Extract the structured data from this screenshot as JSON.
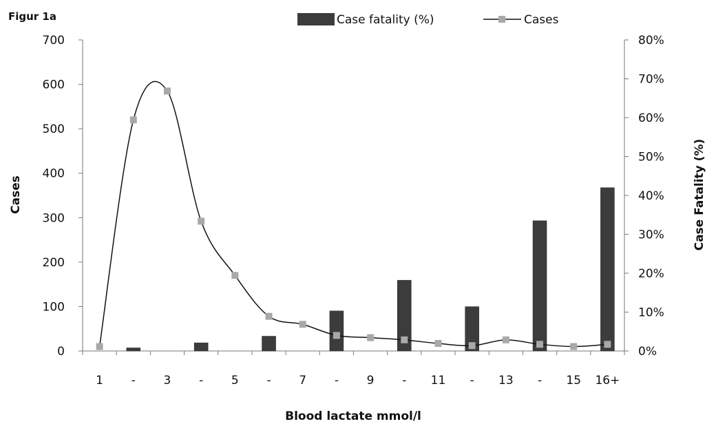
{
  "figure_label": "Figur 1a",
  "chart_data": {
    "type": "bar",
    "title": "",
    "xlabel": "Blood lactate mmol/l",
    "ylabel": "Cases",
    "y2label": "Case Fatality (%)",
    "ylim": [
      0,
      700
    ],
    "y2lim": [
      0,
      80
    ],
    "yticks": [
      "0",
      "100",
      "200",
      "300",
      "400",
      "500",
      "600",
      "700"
    ],
    "y2ticks": [
      "0%",
      "10%",
      "20%",
      "30%",
      "40%",
      "50%",
      "60%",
      "70%",
      "80%"
    ],
    "categories": [
      "1",
      "-",
      "3",
      "-",
      "5",
      "-",
      "7",
      "-",
      "9",
      "-",
      "11",
      "-",
      "13",
      "-",
      "15",
      "16+"
    ],
    "grid": false,
    "legend_position": "top",
    "series": [
      {
        "name": "Case fatality (%)",
        "type": "bar",
        "axis": "right",
        "color": "#3c3c3c",
        "values": [
          0,
          0.8,
          0,
          2.1,
          0,
          3.8,
          0,
          10.3,
          0,
          18.2,
          0,
          11.4,
          0,
          33.5,
          0,
          42
        ]
      },
      {
        "name": "Cases",
        "type": "line",
        "axis": "left",
        "color": "#111111",
        "marker_color": "#a8a8a8",
        "values": [
          10,
          520,
          585,
          292,
          170,
          78,
          60,
          35,
          30,
          25,
          17,
          12,
          25,
          15,
          10,
          15
        ]
      }
    ]
  }
}
